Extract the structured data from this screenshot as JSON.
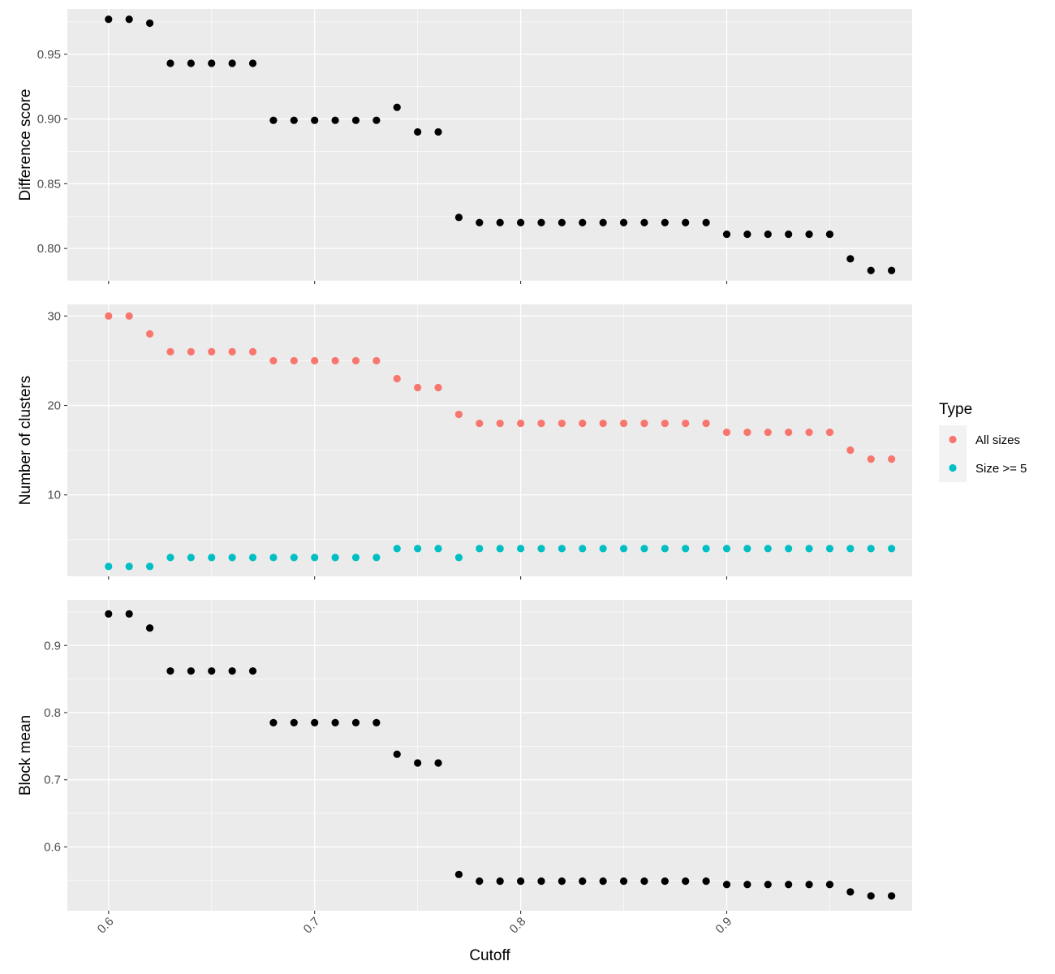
{
  "chart_data": [
    {
      "type": "scatter",
      "xlabel": "Cutoff",
      "ylabel": "Difference score",
      "xlim": [
        0.58,
        0.99
      ],
      "ylim": [
        0.775,
        0.985
      ],
      "xticks": [
        "0.6",
        "0.7",
        "0.8",
        "0.9"
      ],
      "yticks": [
        "0.80",
        "0.85",
        "0.90",
        "0.95"
      ],
      "grid": true,
      "point_color": "#000000",
      "series": [
        {
          "x": [
            0.6,
            0.61,
            0.62,
            0.63,
            0.64,
            0.65,
            0.66,
            0.67,
            0.68,
            0.69,
            0.7,
            0.71,
            0.72,
            0.73,
            0.74,
            0.75,
            0.76,
            0.77,
            0.78,
            0.79,
            0.8,
            0.81,
            0.82,
            0.83,
            0.84,
            0.85,
            0.86,
            0.87,
            0.88,
            0.89,
            0.9,
            0.91,
            0.92,
            0.93,
            0.94,
            0.95,
            0.96,
            0.97,
            0.98
          ],
          "values": [
            0.977,
            0.977,
            0.974,
            0.943,
            0.943,
            0.943,
            0.943,
            0.943,
            0.899,
            0.899,
            0.899,
            0.899,
            0.899,
            0.899,
            0.909,
            0.89,
            0.89,
            0.824,
            0.82,
            0.82,
            0.82,
            0.82,
            0.82,
            0.82,
            0.82,
            0.82,
            0.82,
            0.82,
            0.82,
            0.82,
            0.811,
            0.811,
            0.811,
            0.811,
            0.811,
            0.811,
            0.792,
            0.783,
            0.783
          ]
        }
      ]
    },
    {
      "type": "scatter",
      "xlabel": "Cutoff",
      "ylabel": "Number of clusters",
      "xlim": [
        0.58,
        0.99
      ],
      "ylim": [
        0.9,
        31.3
      ],
      "xticks": [
        "0.6",
        "0.7",
        "0.8",
        "0.9"
      ],
      "yticks": [
        "10",
        "20",
        "30"
      ],
      "grid": true,
      "legend": {
        "title": "Type",
        "position": "right",
        "entries": [
          {
            "label": "All sizes",
            "color": "#f8766d"
          },
          {
            "label": "Size >= 5",
            "color": "#00bfc4"
          }
        ]
      },
      "series": [
        {
          "name": "All sizes",
          "color": "#f8766d",
          "x": [
            0.6,
            0.61,
            0.62,
            0.63,
            0.64,
            0.65,
            0.66,
            0.67,
            0.68,
            0.69,
            0.7,
            0.71,
            0.72,
            0.73,
            0.74,
            0.75,
            0.76,
            0.77,
            0.78,
            0.79,
            0.8,
            0.81,
            0.82,
            0.83,
            0.84,
            0.85,
            0.86,
            0.87,
            0.88,
            0.89,
            0.9,
            0.91,
            0.92,
            0.93,
            0.94,
            0.95,
            0.96,
            0.97,
            0.98
          ],
          "values": [
            30,
            30,
            28,
            26,
            26,
            26,
            26,
            26,
            25,
            25,
            25,
            25,
            25,
            25,
            23,
            22,
            22,
            19,
            18,
            18,
            18,
            18,
            18,
            18,
            18,
            18,
            18,
            18,
            18,
            18,
            17,
            17,
            17,
            17,
            17,
            17,
            15,
            14,
            14
          ]
        },
        {
          "name": "Size >= 5",
          "color": "#00bfc4",
          "x": [
            0.6,
            0.61,
            0.62,
            0.63,
            0.64,
            0.65,
            0.66,
            0.67,
            0.68,
            0.69,
            0.7,
            0.71,
            0.72,
            0.73,
            0.74,
            0.75,
            0.76,
            0.77,
            0.78,
            0.79,
            0.8,
            0.81,
            0.82,
            0.83,
            0.84,
            0.85,
            0.86,
            0.87,
            0.88,
            0.89,
            0.9,
            0.91,
            0.92,
            0.93,
            0.94,
            0.95,
            0.96,
            0.97,
            0.98
          ],
          "values": [
            2,
            2,
            2,
            3,
            3,
            3,
            3,
            3,
            3,
            3,
            3,
            3,
            3,
            3,
            4,
            4,
            4,
            3,
            4,
            4,
            4,
            4,
            4,
            4,
            4,
            4,
            4,
            4,
            4,
            4,
            4,
            4,
            4,
            4,
            4,
            4,
            4,
            4,
            4
          ]
        }
      ]
    },
    {
      "type": "scatter",
      "xlabel": "Cutoff",
      "ylabel": "Block mean",
      "xlim": [
        0.58,
        0.99
      ],
      "ylim": [
        0.505,
        0.968
      ],
      "xticks": [
        "0.6",
        "0.7",
        "0.8",
        "0.9"
      ],
      "yticks": [
        "0.6",
        "0.7",
        "0.8",
        "0.9"
      ],
      "grid": true,
      "point_color": "#000000",
      "series": [
        {
          "x": [
            0.6,
            0.61,
            0.62,
            0.63,
            0.64,
            0.65,
            0.66,
            0.67,
            0.68,
            0.69,
            0.7,
            0.71,
            0.72,
            0.73,
            0.74,
            0.75,
            0.76,
            0.77,
            0.78,
            0.79,
            0.8,
            0.81,
            0.82,
            0.83,
            0.84,
            0.85,
            0.86,
            0.87,
            0.88,
            0.89,
            0.9,
            0.91,
            0.92,
            0.93,
            0.94,
            0.95,
            0.96,
            0.97,
            0.98
          ],
          "values": [
            0.947,
            0.947,
            0.926,
            0.862,
            0.862,
            0.862,
            0.862,
            0.862,
            0.785,
            0.785,
            0.785,
            0.785,
            0.785,
            0.785,
            0.738,
            0.725,
            0.725,
            0.559,
            0.549,
            0.549,
            0.549,
            0.549,
            0.549,
            0.549,
            0.549,
            0.549,
            0.549,
            0.549,
            0.549,
            0.549,
            0.544,
            0.544,
            0.544,
            0.544,
            0.544,
            0.544,
            0.533,
            0.527,
            0.527
          ]
        }
      ]
    }
  ]
}
